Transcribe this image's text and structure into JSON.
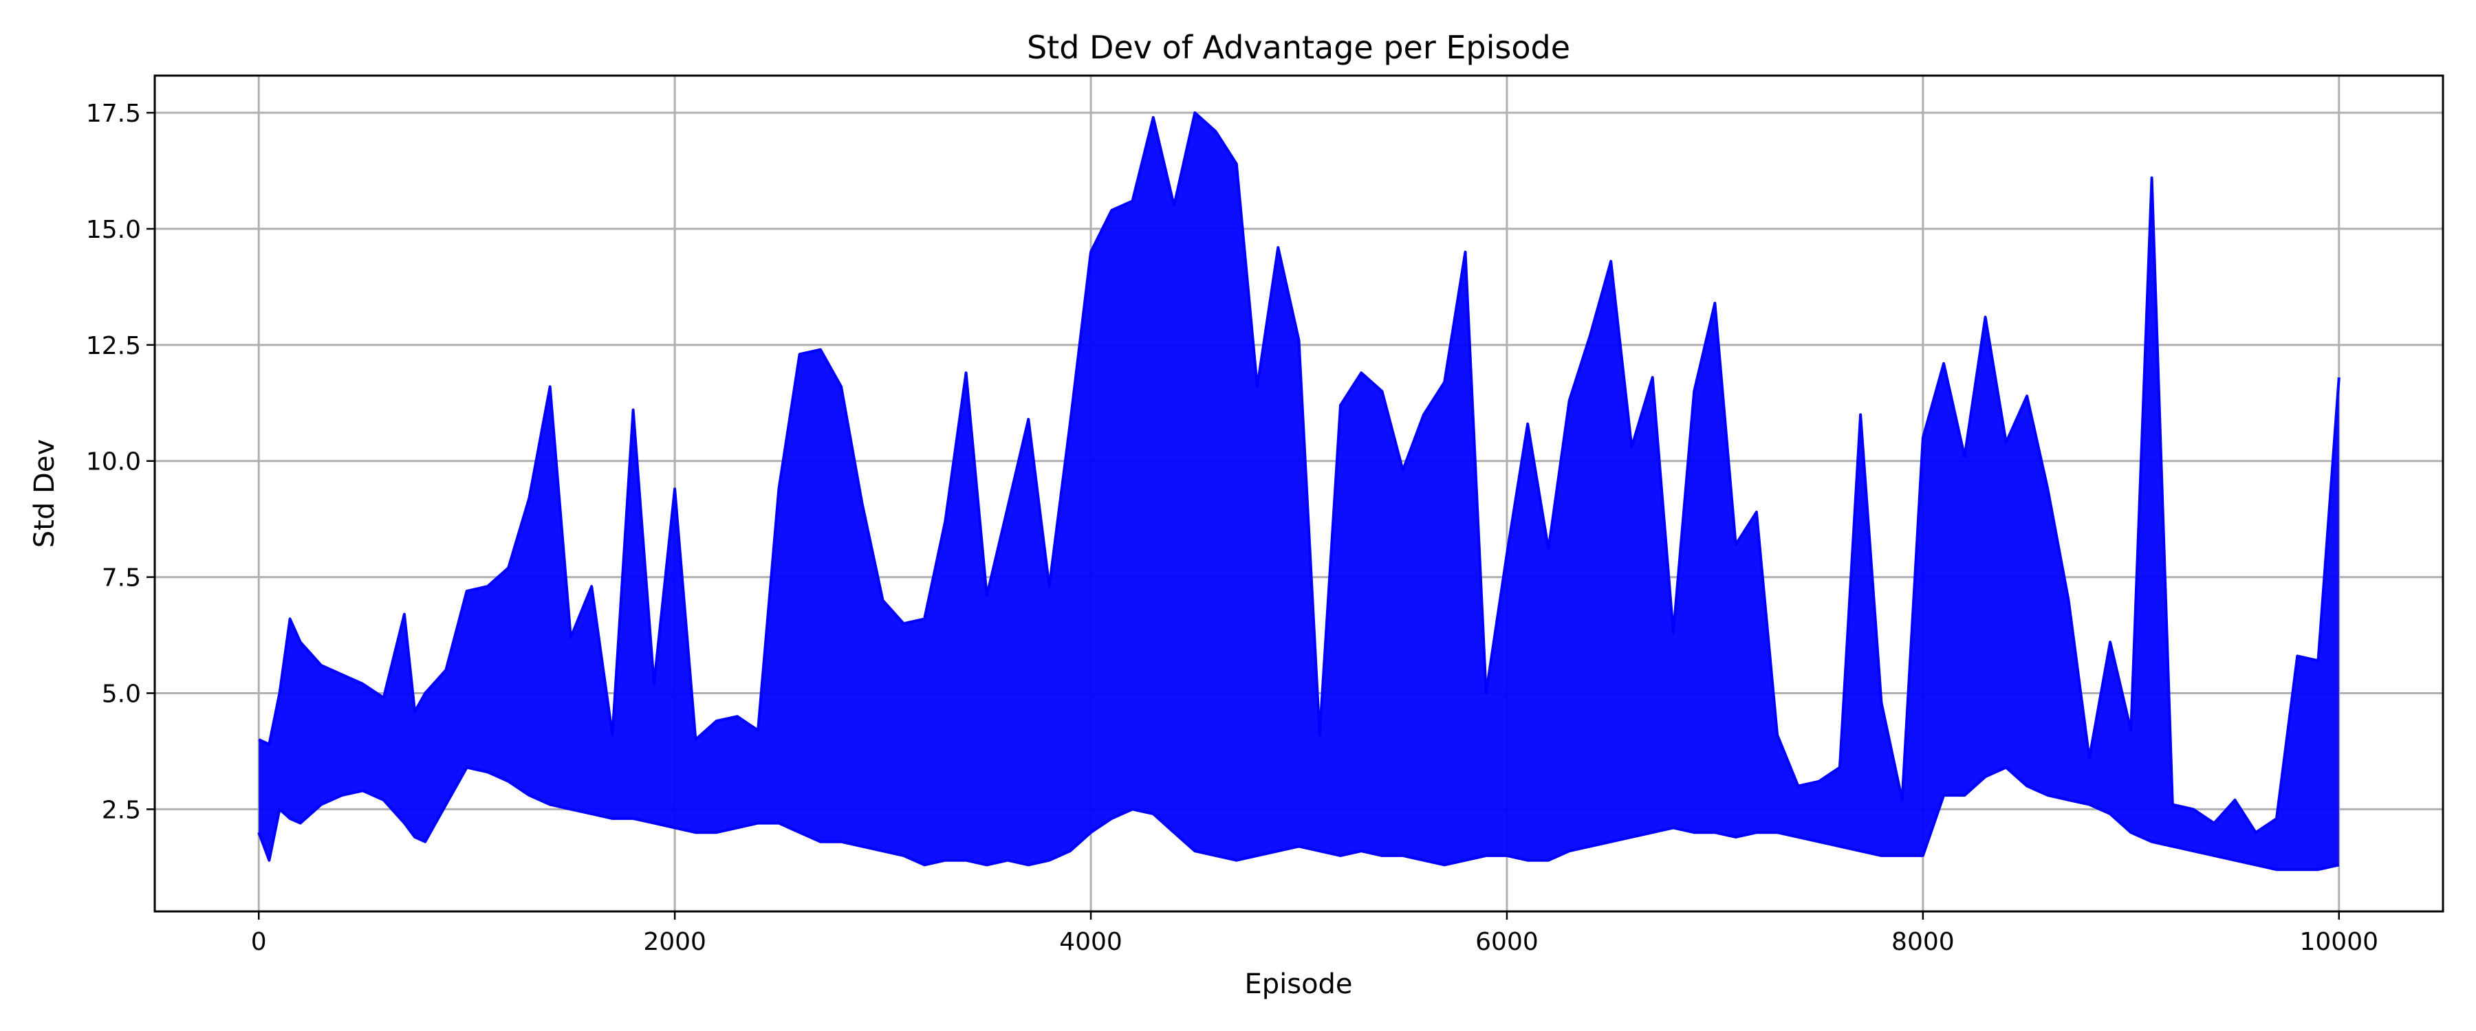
{
  "chart_data": {
    "type": "line",
    "title": "Std Dev of Advantage per Episode",
    "xlabel": "Episode",
    "ylabel": "Std Dev",
    "xlim": [
      -500,
      10500
    ],
    "ylim": [
      0.3,
      18.3
    ],
    "xticks": [
      0,
      2000,
      4000,
      6000,
      8000,
      10000
    ],
    "xtick_labels": [
      "0",
      "2000",
      "4000",
      "6000",
      "8000",
      "10000"
    ],
    "yticks": [
      2.5,
      5.0,
      7.5,
      10.0,
      12.5,
      15.0,
      17.5
    ],
    "ytick_labels": [
      "2.5",
      "5.0",
      "7.5",
      "10.0",
      "12.5",
      "15.0",
      "17.5"
    ],
    "grid": true,
    "series": [
      {
        "color": "#0000ff",
        "x": [
          0,
          50,
          100,
          150,
          200,
          300,
          400,
          500,
          600,
          700,
          750,
          800,
          900,
          1000,
          1100,
          1200,
          1300,
          1400,
          1500,
          1600,
          1700,
          1800,
          1900,
          2000,
          2100,
          2200,
          2300,
          2400,
          2500,
          2600,
          2700,
          2800,
          2900,
          3000,
          3100,
          3200,
          3300,
          3400,
          3500,
          3600,
          3700,
          3800,
          3900,
          4000,
          4100,
          4200,
          4300,
          4400,
          4500,
          4600,
          4700,
          4800,
          4900,
          5000,
          5100,
          5200,
          5300,
          5400,
          5500,
          5600,
          5700,
          5800,
          5900,
          6000,
          6100,
          6200,
          6300,
          6400,
          6500,
          6600,
          6700,
          6800,
          6900,
          7000,
          7100,
          7200,
          7300,
          7400,
          7500,
          7600,
          7700,
          7800,
          7900,
          8000,
          8100,
          8200,
          8300,
          8400,
          8500,
          8600,
          8700,
          8800,
          8900,
          9000,
          9100,
          9200,
          9300,
          9400,
          9500,
          9600,
          9700,
          9800,
          9900,
          10000
        ],
        "low": [
          2.0,
          1.4,
          2.5,
          2.3,
          2.2,
          2.6,
          2.8,
          2.9,
          2.7,
          2.2,
          1.9,
          1.8,
          2.6,
          3.4,
          3.3,
          3.1,
          2.8,
          2.6,
          2.5,
          2.4,
          2.3,
          2.3,
          2.2,
          2.1,
          2.0,
          2.0,
          2.1,
          2.2,
          2.2,
          2.0,
          1.8,
          1.8,
          1.7,
          1.6,
          1.5,
          1.3,
          1.4,
          1.4,
          1.3,
          1.4,
          1.3,
          1.4,
          1.6,
          2.0,
          2.3,
          2.5,
          2.4,
          2.0,
          1.6,
          1.5,
          1.4,
          1.5,
          1.6,
          1.7,
          1.6,
          1.5,
          1.6,
          1.5,
          1.5,
          1.4,
          1.3,
          1.4,
          1.5,
          1.5,
          1.4,
          1.4,
          1.6,
          1.7,
          1.8,
          1.9,
          2.0,
          2.1,
          2.0,
          2.0,
          1.9,
          2.0,
          2.0,
          1.9,
          1.8,
          1.7,
          1.6,
          1.5,
          1.5,
          1.5,
          2.8,
          2.8,
          3.2,
          3.4,
          3.0,
          2.8,
          2.7,
          2.6,
          2.4,
          2.0,
          1.8,
          1.7,
          1.6,
          1.5,
          1.4,
          1.3,
          1.2,
          1.2,
          1.2,
          1.3
        ],
        "high": [
          4.0,
          3.9,
          5.0,
          6.6,
          6.1,
          5.6,
          5.4,
          5.2,
          4.9,
          6.7,
          4.6,
          5.0,
          5.5,
          7.2,
          7.3,
          7.7,
          9.2,
          11.6,
          6.2,
          7.3,
          4.1,
          11.1,
          5.2,
          9.4,
          4.0,
          4.4,
          4.5,
          4.2,
          9.4,
          12.3,
          12.4,
          11.6,
          9.1,
          7.0,
          6.5,
          6.6,
          8.7,
          11.9,
          7.1,
          9.0,
          10.9,
          7.3,
          10.8,
          14.5,
          15.4,
          15.6,
          17.4,
          15.5,
          17.5,
          17.1,
          16.4,
          11.6,
          14.6,
          12.6,
          4.1,
          11.2,
          11.9,
          11.5,
          9.8,
          11.0,
          11.7,
          14.5,
          5.0,
          8.0,
          10.8,
          8.1,
          11.3,
          12.7,
          14.3,
          10.3,
          11.8,
          6.3,
          11.5,
          13.4,
          8.2,
          8.9,
          4.1,
          3.0,
          3.1,
          3.4,
          11.0,
          4.8,
          2.7,
          10.5,
          12.1,
          10.1,
          13.1,
          10.4,
          11.4,
          9.4,
          7.0,
          3.6,
          6.1,
          4.2,
          16.1,
          2.6,
          2.5,
          2.2,
          2.7,
          2.0,
          2.3,
          5.8,
          5.7,
          11.8
        ]
      }
    ]
  }
}
